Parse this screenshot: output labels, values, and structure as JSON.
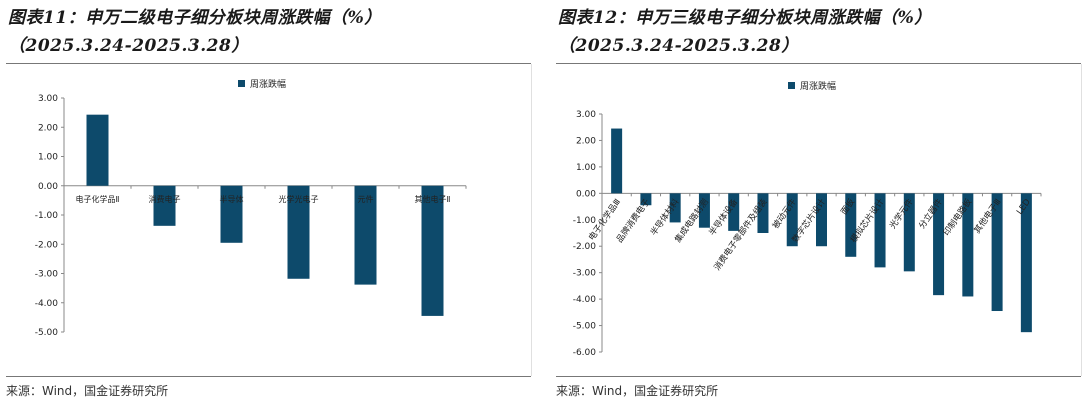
{
  "charts": [
    {
      "title_line1": "图表11：申万二级电子细分板块周涨跌幅（%）",
      "title_line2": "（2025.3.24-2025.3.28）",
      "source": "来源：Wind，国金证券研究所"
    },
    {
      "title_line1": "图表12：申万三级电子细分板块周涨跌幅（%）",
      "title_line2": "（2025.3.24-2025.3.28）",
      "source": "来源：Wind，国金证券研究所"
    }
  ],
  "chart_data": [
    {
      "type": "bar",
      "title": "",
      "legend": "周涨跌幅",
      "legend_position": "top-center",
      "bar_color": "#0d4a6b",
      "categories": [
        "电子化学品Ⅱ",
        "消费电子",
        "半导体",
        "光学光电子",
        "元件",
        "其他电子Ⅱ"
      ],
      "series": [
        {
          "name": "周涨跌幅",
          "values": [
            2.43,
            -1.37,
            -1.95,
            -3.18,
            -3.38,
            -4.45
          ]
        }
      ],
      "ylim": [
        -5.0,
        3.0
      ],
      "yticks": [
        "3.00",
        "2.00",
        "1.00",
        "0.00",
        "-1.00",
        "-2.00",
        "-3.00",
        "-4.00",
        "-5.00"
      ],
      "grid": false
    },
    {
      "type": "bar",
      "title": "",
      "legend": "周涨跌幅",
      "legend_position": "top-left",
      "bar_color": "#0d4a6b",
      "categories": [
        "电子化学品Ⅲ",
        "品牌消费电子",
        "半导体材料",
        "集成电路封测",
        "半导体设备",
        "消费电子零部件及组装",
        "被动元件",
        "数字芯片设计",
        "面板",
        "模拟芯片设计",
        "光学元件",
        "分立器件",
        "印制电路板",
        "其他电子Ⅲ",
        "LED"
      ],
      "series": [
        {
          "name": "周涨跌幅",
          "values": [
            2.45,
            -0.45,
            -1.1,
            -1.3,
            -1.42,
            -1.5,
            -2.0,
            -2.0,
            -2.4,
            -2.8,
            -2.95,
            -3.85,
            -3.9,
            -4.45,
            -5.25
          ]
        }
      ],
      "ylim": [
        -6.0,
        3.0
      ],
      "yticks": [
        "3.00",
        "2.00",
        "1.00",
        "0.00",
        "-1.00",
        "-2.00",
        "-3.00",
        "-4.00",
        "-5.00",
        "-6.00"
      ],
      "grid": false
    }
  ]
}
